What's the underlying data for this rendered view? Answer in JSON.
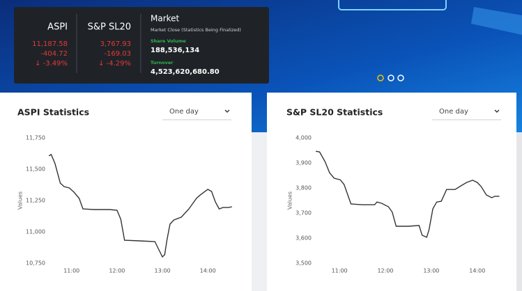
{
  "summary": {
    "indices": [
      {
        "name": "ASPI",
        "value": "11,187.58",
        "change": "-404.72",
        "percent": "↓ -3.49%"
      },
      {
        "name": "S&P SL20",
        "value": "3,767.93",
        "change": "-169.03",
        "percent": "↓ -4.29%"
      }
    ],
    "market": {
      "title": "Market",
      "status": "Market Close (Statistics Being Finalized)",
      "share_volume_label": "Share Volume",
      "share_volume": "188,536,134",
      "turnover_label": "Turnover",
      "turnover": "4,523,620,680.80"
    }
  },
  "chart_data": [
    {
      "type": "line",
      "title": "ASPI Statistics",
      "period": "One day",
      "ylabel": "Values",
      "color": "#333333",
      "grid": false,
      "x": [
        "10:30",
        "10:33",
        "10:38",
        "10:45",
        "10:50",
        "10:57",
        "11:03",
        "11:10",
        "11:15",
        "11:30",
        "11:50",
        "12:00",
        "12:05",
        "12:10",
        "12:30",
        "12:50",
        "12:55",
        "13:00",
        "13:03",
        "13:06",
        "13:10",
        "13:15",
        "13:25",
        "13:35",
        "13:45",
        "13:50",
        "14:00",
        "14:05",
        "14:10",
        "14:15",
        "14:20",
        "14:27",
        "14:32"
      ],
      "values": [
        11606,
        11617,
        11545,
        11389,
        11361,
        11350,
        11317,
        11267,
        11183,
        11178,
        11178,
        11172,
        11100,
        10933,
        10928,
        10922,
        10861,
        10800,
        10817,
        10933,
        11061,
        11094,
        11117,
        11183,
        11267,
        11294,
        11339,
        11322,
        11239,
        11183,
        11194,
        11194,
        11200
      ],
      "xlim": [
        "10:28",
        "14:33"
      ],
      "ylim": [
        10700,
        11800
      ],
      "xticks": [
        "11:00",
        "12:00",
        "13:00",
        "14:00"
      ],
      "yticks": [
        {
          "value": 10750,
          "label": "10,750"
        },
        {
          "value": 11000,
          "label": "11,000"
        },
        {
          "value": 11250,
          "label": "11,250"
        },
        {
          "value": 11500,
          "label": "11,500"
        },
        {
          "value": 11750,
          "label": "11,750"
        }
      ]
    },
    {
      "type": "line",
      "title": "S&P SL20 Statistics",
      "period": "One day",
      "ylabel": "Values",
      "color": "#333333",
      "grid": false,
      "x": [
        "10:29",
        "10:34",
        "10:41",
        "10:47",
        "10:53",
        "11:01",
        "11:06",
        "11:15",
        "11:30",
        "11:46",
        "11:49",
        "11:55",
        "12:04",
        "12:09",
        "12:14",
        "12:30",
        "12:44",
        "12:48",
        "12:54",
        "12:57",
        "13:02",
        "13:07",
        "13:13",
        "13:20",
        "13:31",
        "13:40",
        "13:46",
        "13:54",
        "14:00",
        "14:05",
        "14:12",
        "14:19",
        "14:23",
        "14:29"
      ],
      "values": [
        3947,
        3944,
        3906,
        3861,
        3839,
        3833,
        3814,
        3736,
        3733,
        3733,
        3744,
        3739,
        3725,
        3703,
        3647,
        3647,
        3650,
        3611,
        3603,
        3633,
        3717,
        3744,
        3747,
        3794,
        3794,
        3811,
        3822,
        3831,
        3822,
        3806,
        3772,
        3761,
        3767,
        3767
      ],
      "xlim": [
        "10:28",
        "14:33"
      ],
      "ylim": [
        3480,
        4020
      ],
      "xticks": [
        "11:00",
        "12:00",
        "13:00",
        "14:00"
      ],
      "yticks": [
        {
          "value": 3500,
          "label": "3,500"
        },
        {
          "value": 3600,
          "label": "3,600"
        },
        {
          "value": 3700,
          "label": "3,700"
        },
        {
          "value": 3800,
          "label": "3,800"
        },
        {
          "value": 3900,
          "label": "3,900"
        },
        {
          "value": 4000,
          "label": "4,000"
        }
      ]
    }
  ]
}
